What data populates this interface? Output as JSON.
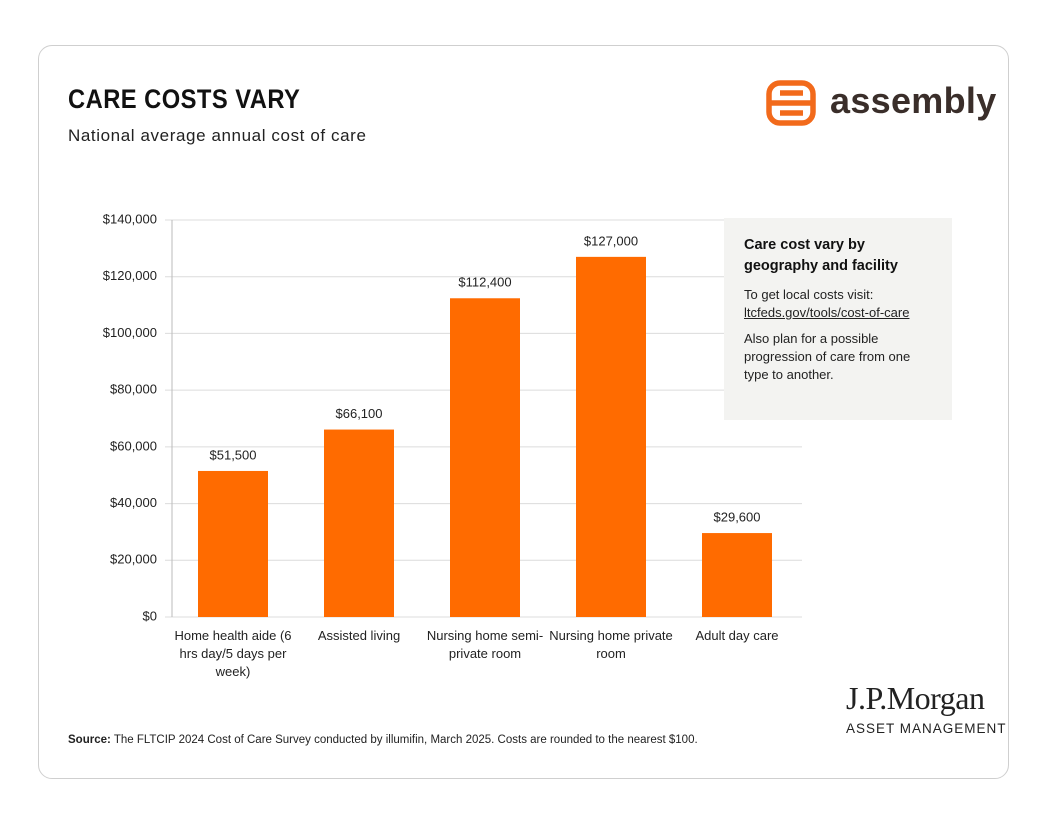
{
  "header": {
    "logo_text": "assembly"
  },
  "chart_data": {
    "type": "bar",
    "title": "CARE COSTS VARY",
    "subtitle": "National average annual cost of care",
    "categories": [
      "Home health aide (6 hrs day/5 days per week)",
      "Assisted living",
      "Nursing home semi-private room",
      "Nursing home private room",
      "Adult day care"
    ],
    "values": [
      51500,
      66100,
      112400,
      127000,
      29600
    ],
    "value_labels": [
      "$51,500",
      "$66,100",
      "$112,400",
      "$127,000",
      "$29,600"
    ],
    "color": "#ff6b00",
    "ylim": [
      0,
      140000
    ],
    "yticks": [
      {
        "value": 0,
        "label": "$0"
      },
      {
        "value": 20000,
        "label": "$20,000"
      },
      {
        "value": 40000,
        "label": "$40,000"
      },
      {
        "value": 60000,
        "label": "$60,000"
      },
      {
        "value": 80000,
        "label": "$80,000"
      },
      {
        "value": 100000,
        "label": "$100,000"
      },
      {
        "value": 120000,
        "label": "$120,000"
      },
      {
        "value": 140000,
        "label": "$140,000"
      }
    ],
    "grid": true
  },
  "note": {
    "title": "Care cost vary by geography and facility",
    "text": "To get local costs visit:",
    "link": "ltcfeds.gov/tools/cost-of-care",
    "text2": "Also plan for a possible progression of care from one type to another."
  },
  "footer": {
    "source_label": "Source:",
    "source": "The FLTCIP 2024 Cost of Care Survey conducted by illumifin, March 2025. Costs are rounded to the nearest $100.",
    "brand": "J.P.Morgan",
    "brand_sub": "ASSET MANAGEMENT"
  }
}
